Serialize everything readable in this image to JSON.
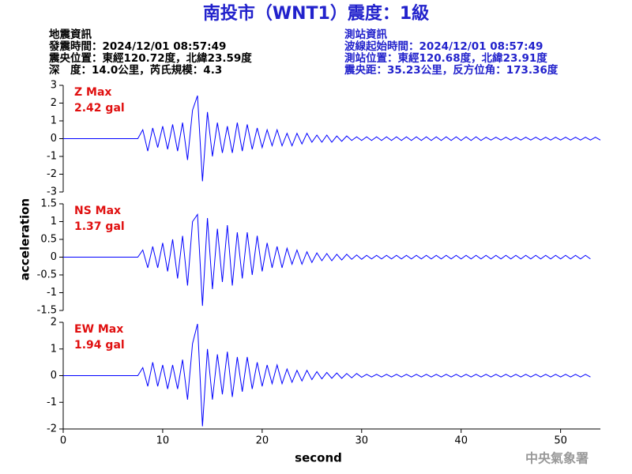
{
  "chart_data": {
    "type": "line",
    "title": "南投市（WNT1）震度：1級",
    "info_left": [
      "地震資訊",
      "發震時間：2024/12/01 08:57:49",
      "震央位置：東經120.72度，北緯23.59度",
      "深　度：14.0公里，芮氏規模：4.3"
    ],
    "info_right": [
      "測站資訊",
      "波線起始時間：2024/12/01 08:57:49",
      "測站位置：東經120.68度，北緯23.91度",
      "震央距：35.23公里，反方位角：173.36度"
    ],
    "y_label": "acceleration",
    "x_label": "second",
    "footer": "中央氣象署",
    "color": "#0000ff",
    "xlim": [
      0,
      54
    ],
    "xticks": [
      0,
      10,
      20,
      30,
      40,
      50
    ],
    "x": [
      0,
      0.5,
      1,
      1.5,
      2,
      2.5,
      3,
      3.5,
      4,
      4.5,
      5,
      5.5,
      6,
      6.5,
      7,
      7.5,
      8,
      8.5,
      9,
      9.5,
      10,
      10.5,
      11,
      11.5,
      12,
      12.5,
      13,
      13.5,
      14,
      14.5,
      15,
      15.5,
      16,
      16.5,
      17,
      17.5,
      18,
      18.5,
      19,
      19.5,
      20,
      20.5,
      21,
      21.5,
      22,
      22.5,
      23,
      23.5,
      24,
      24.5,
      25,
      25.5,
      26,
      26.5,
      27,
      27.5,
      28,
      28.5,
      29,
      29.5,
      30,
      30.5,
      31,
      31.5,
      32,
      32.5,
      33,
      33.5,
      34,
      34.5,
      35,
      35.5,
      36,
      36.5,
      37,
      37.5,
      38,
      38.5,
      39,
      39.5,
      40,
      40.5,
      41,
      41.5,
      42,
      42.5,
      43,
      43.5,
      44,
      44.5,
      45,
      45.5,
      46,
      46.5,
      47,
      47.5,
      48,
      48.5,
      49,
      49.5,
      50,
      50.5,
      51,
      51.5,
      52,
      52.5,
      53,
      53.5,
      54
    ],
    "panels": [
      {
        "name": "Z Max",
        "max_label": "2.42 gal",
        "ylim": [
          -3,
          3
        ],
        "yticks": [
          -3,
          -2,
          -1,
          0,
          1,
          2,
          3
        ],
        "values": [
          0,
          0,
          0,
          0,
          0,
          0,
          0,
          0,
          0,
          0,
          0,
          0,
          0,
          0,
          0,
          0,
          0.5,
          -0.7,
          0.6,
          -0.5,
          0.7,
          -0.6,
          0.8,
          -0.7,
          0.9,
          -1.2,
          1.6,
          2.42,
          -2.4,
          1.5,
          -1.0,
          0.9,
          -0.8,
          0.7,
          -0.8,
          0.9,
          -0.7,
          0.8,
          -0.6,
          0.6,
          -0.5,
          0.5,
          -0.4,
          0.5,
          -0.4,
          0.3,
          -0.4,
          0.3,
          -0.3,
          0.3,
          -0.2,
          0.2,
          -0.2,
          0.2,
          -0.2,
          0.15,
          -0.15,
          0.15,
          -0.1,
          0.1,
          -0.1,
          0.1,
          -0.1,
          0.1,
          -0.1,
          0.1,
          -0.1,
          0.1,
          -0.1,
          0.1,
          -0.1,
          0.1,
          -0.1,
          0.1,
          -0.1,
          0.1,
          -0.1,
          0.1,
          -0.1,
          0.1,
          -0.1,
          0.1,
          -0.1,
          0.1,
          -0.1,
          0.08,
          -0.08,
          0.08,
          -0.08,
          0.08,
          -0.08,
          0.08,
          -0.08,
          0.08,
          -0.08,
          0.08,
          -0.08,
          0.08,
          -0.08,
          0.08,
          -0.08,
          0.08,
          -0.08,
          0.08,
          -0.08,
          0.08,
          -0.08,
          0.08,
          -0.08
        ]
      },
      {
        "name": "NS Max",
        "max_label": "1.37 gal",
        "ylim": [
          -1.5,
          1.5
        ],
        "yticks": [
          -1.5,
          -1,
          -0.5,
          0,
          0.5,
          1,
          1.5
        ],
        "values": [
          0,
          0,
          0,
          0,
          0,
          0,
          0,
          0,
          0,
          0,
          0,
          0,
          0,
          0,
          0,
          0,
          0.2,
          -0.3,
          0.3,
          -0.3,
          0.4,
          -0.4,
          0.5,
          -0.6,
          0.6,
          -0.8,
          1.0,
          1.2,
          -1.37,
          1.1,
          -0.9,
          0.8,
          -0.7,
          0.9,
          -0.8,
          0.7,
          -0.6,
          0.7,
          -0.5,
          0.6,
          -0.4,
          0.4,
          -0.3,
          0.3,
          -0.3,
          0.25,
          -0.2,
          0.2,
          -0.2,
          0.15,
          -0.15,
          0.12,
          -0.1,
          0.1,
          -0.1,
          0.08,
          -0.08,
          0.08,
          -0.06,
          0.06,
          -0.06,
          0.05,
          -0.05,
          0.05,
          -0.05,
          0.05,
          -0.05,
          0.05,
          -0.05,
          0.05,
          -0.05,
          0.05,
          -0.05,
          0.05,
          -0.05,
          0.05,
          -0.05,
          0.05,
          -0.05,
          0.05,
          -0.05,
          0.05,
          -0.05,
          0.05,
          -0.05,
          0.05,
          -0.05,
          0.05,
          -0.05,
          0.05,
          -0.05,
          0.05,
          -0.05,
          0.05,
          -0.05,
          0.05,
          -0.05,
          0.05,
          -0.05,
          0.05,
          -0.05,
          0.05,
          -0.05,
          0.05,
          -0.05,
          0.05,
          -0.05
        ]
      },
      {
        "name": "EW Max",
        "max_label": "1.94 gal",
        "ylim": [
          -2,
          2
        ],
        "yticks": [
          -2,
          -1,
          0,
          1,
          2
        ],
        "values": [
          0,
          0,
          0,
          0,
          0,
          0,
          0,
          0,
          0,
          0,
          0,
          0,
          0,
          0,
          0,
          0,
          0.3,
          -0.4,
          0.5,
          -0.4,
          0.4,
          -0.5,
          0.4,
          -0.5,
          0.6,
          -0.9,
          1.2,
          1.94,
          -1.9,
          1.0,
          -0.9,
          0.8,
          -0.7,
          0.9,
          -0.8,
          0.7,
          -0.6,
          0.7,
          -0.5,
          0.5,
          -0.4,
          0.4,
          -0.3,
          0.4,
          -0.3,
          0.25,
          -0.25,
          0.2,
          -0.2,
          0.2,
          -0.15,
          0.15,
          -0.12,
          0.12,
          -0.1,
          0.1,
          -0.1,
          0.08,
          -0.08,
          0.08,
          -0.06,
          0.05,
          -0.05,
          0.05,
          -0.05,
          0.05,
          -0.05,
          0.05,
          -0.05,
          0.05,
          -0.05,
          0.05,
          -0.05,
          0.05,
          -0.05,
          0.05,
          -0.05,
          0.05,
          -0.05,
          0.05,
          -0.05,
          0.05,
          -0.05,
          0.05,
          -0.05,
          0.05,
          -0.05,
          0.05,
          -0.05,
          0.05,
          -0.05,
          0.05,
          -0.05,
          0.05,
          -0.05,
          0.05,
          -0.05,
          0.05,
          -0.05,
          0.05,
          -0.05,
          0.05,
          -0.05,
          0.05,
          -0.05,
          0.05,
          -0.05
        ]
      }
    ]
  }
}
